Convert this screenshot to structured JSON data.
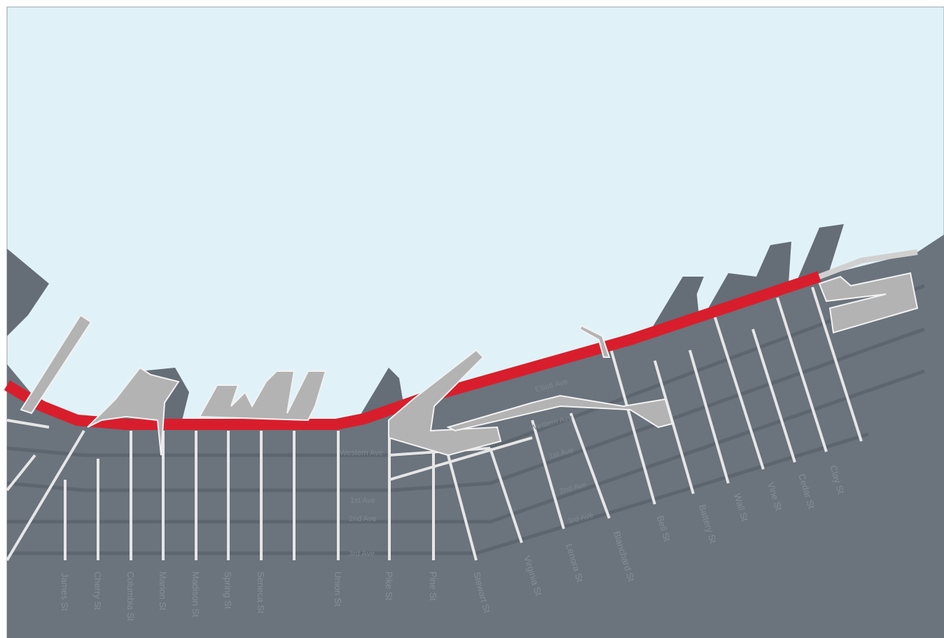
{
  "streets": [
    "James St",
    "Cherry St",
    "Columbia St",
    "Marion St",
    "Madison St",
    "Spring St",
    "Seneca St",
    "Union St",
    "Pike St",
    "Pine St",
    "Stewart St",
    "Virginia St",
    "Lenora St",
    "Blanchard St",
    "Bell St",
    "Battery St",
    "Wall St",
    "Vine St",
    "Cedar St",
    "Clay St"
  ],
  "avenues": [
    "Western Ave",
    "Elliott Ave",
    "Western Ave",
    "1st Ave",
    "1st Ave",
    "2nd Ave",
    "2nd Ave",
    "3rd Ave",
    "3rd Ave"
  ]
}
